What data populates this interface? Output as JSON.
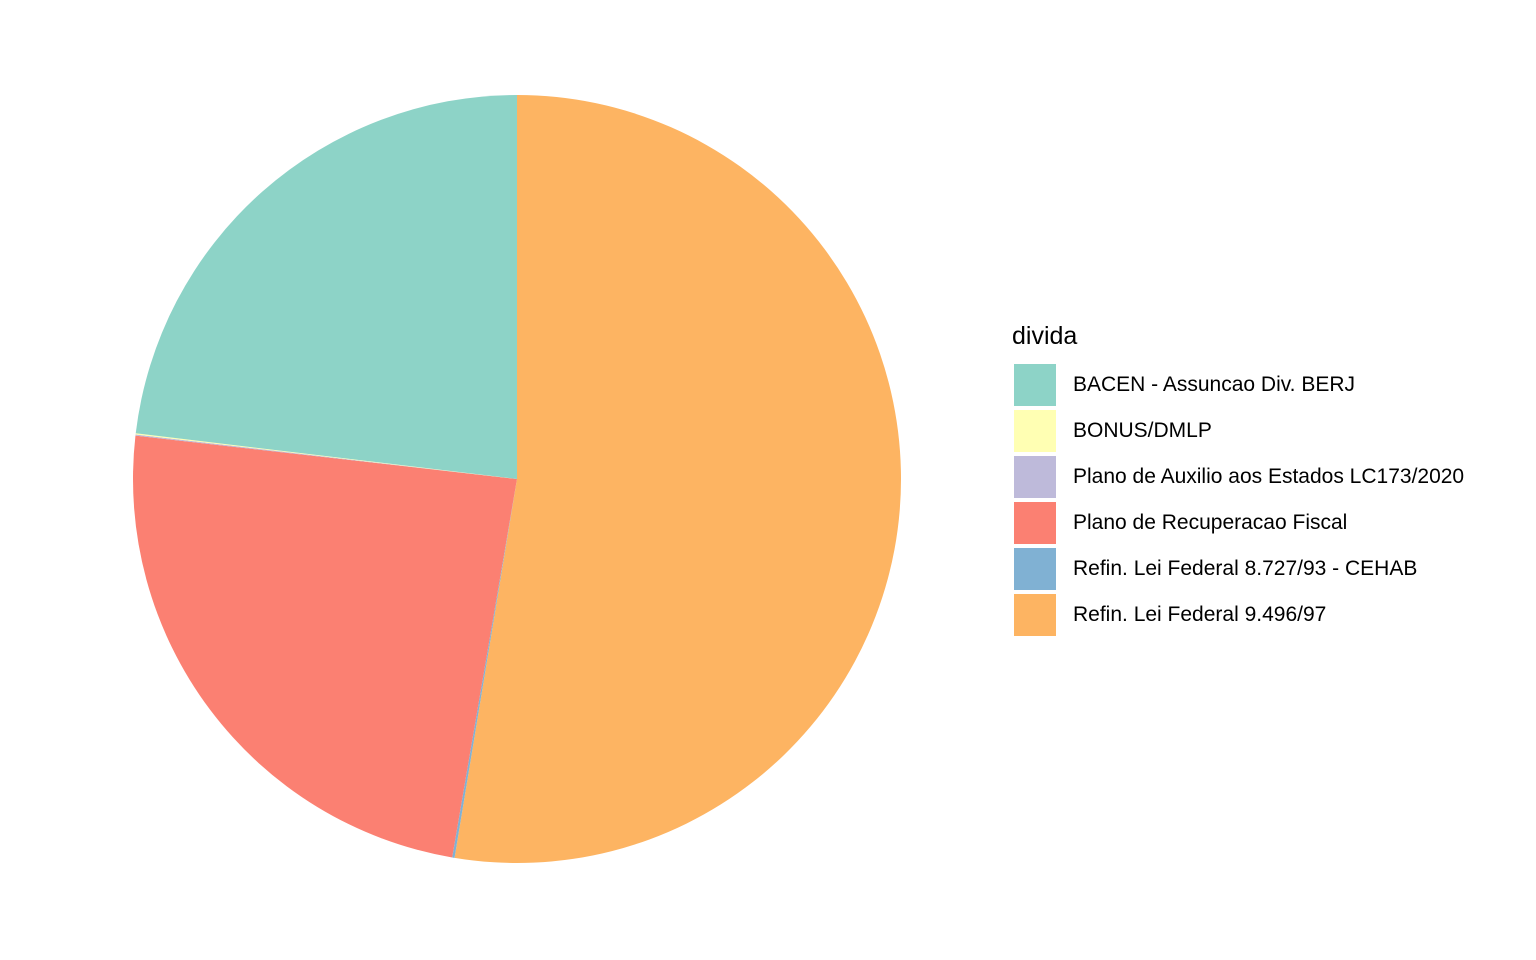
{
  "chart_data": {
    "type": "pie",
    "title": "",
    "legend_title": "divida",
    "legend_position": "right",
    "start_angle": "12 o'clock",
    "direction": "clockwise",
    "series": [
      {
        "name": "Refin. Lei Federal 9.496/97",
        "value": 52.6,
        "color": "#FDB462"
      },
      {
        "name": "Refin. Lei Federal 8.727/93 - CEHAB",
        "value": 0.1,
        "color": "#80B1D3"
      },
      {
        "name": "Plano de Recuperacao Fiscal",
        "value": 24.1,
        "color": "#FB8072"
      },
      {
        "name": "Plano de Auxilio aos Estados LC173/2020",
        "value": 0.05,
        "color": "#BEBADA"
      },
      {
        "name": "BONUS/DMLP",
        "value": 0.05,
        "color": "#FFFFB3"
      },
      {
        "name": "BACEN - Assuncao Div. BERJ",
        "value": 23.1,
        "color": "#8DD3C7"
      }
    ],
    "legend_order": [
      "BACEN - Assuncao Div. BERJ",
      "BONUS/DMLP",
      "Plano de Auxilio aos Estados LC173/2020",
      "Plano de Recuperacao Fiscal",
      "Refin. Lei Federal 8.727/93 - CEHAB",
      "Refin. Lei Federal 9.496/97"
    ]
  }
}
